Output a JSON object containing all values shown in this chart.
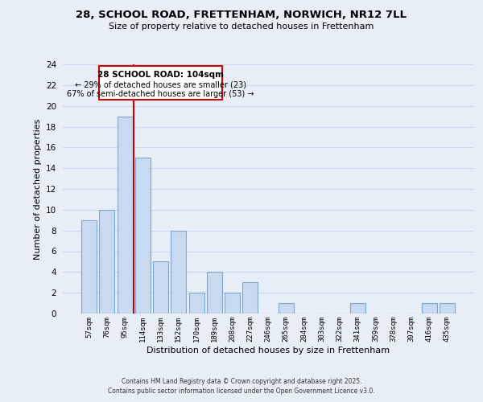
{
  "title_line1": "28, SCHOOL ROAD, FRETTENHAM, NORWICH, NR12 7LL",
  "title_line2": "Size of property relative to detached houses in Frettenham",
  "xlabel": "Distribution of detached houses by size in Frettenham",
  "ylabel": "Number of detached properties",
  "bar_labels": [
    "57sqm",
    "76sqm",
    "95sqm",
    "114sqm",
    "133sqm",
    "152sqm",
    "170sqm",
    "189sqm",
    "208sqm",
    "227sqm",
    "246sqm",
    "265sqm",
    "284sqm",
    "303sqm",
    "322sqm",
    "341sqm",
    "359sqm",
    "378sqm",
    "397sqm",
    "416sqm",
    "435sqm"
  ],
  "bar_heights": [
    9,
    10,
    19,
    15,
    5,
    8,
    2,
    4,
    2,
    3,
    0,
    1,
    0,
    0,
    0,
    1,
    0,
    0,
    0,
    1,
    1
  ],
  "bar_color": "#c9d9f0",
  "bar_edge_color": "#7ba7d0",
  "ref_line_x": 2.5,
  "annotation_title": "28 SCHOOL ROAD: 104sqm",
  "annotation_line2": "← 29% of detached houses are smaller (23)",
  "annotation_line3": "67% of semi-detached houses are larger (53) →",
  "annotation_box_color": "#ffffff",
  "annotation_box_edge": "#cc0000",
  "ref_line_color": "#cc0000",
  "ylim": [
    0,
    24
  ],
  "yticks": [
    0,
    2,
    4,
    6,
    8,
    10,
    12,
    14,
    16,
    18,
    20,
    22,
    24
  ],
  "grid_color": "#c8d8ee",
  "background_color": "#e8eef8",
  "footer_line1": "Contains HM Land Registry data © Crown copyright and database right 2025.",
  "footer_line2": "Contains public sector information licensed under the Open Government Licence v3.0."
}
